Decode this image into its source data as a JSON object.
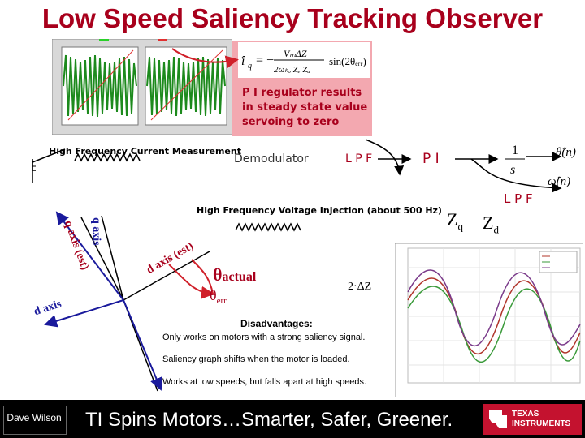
{
  "title": "Low Speed Saliency Tracking Observer",
  "equation": {
    "lhs": "î",
    "lhs_sub": "q",
    "num": "VₘΔZ",
    "den": "2ωₕₒ Zₑ Zₐ",
    "rhs": "sin(2θₑᵣᵣ)"
  },
  "pi_note": [
    "P I regulator results",
    "in steady state value",
    "servoing to zero"
  ],
  "hf_current_label": "High Frequency Current Measurement",
  "demodulator_label": "Demodulator",
  "lpf1_label": "L P F",
  "pi_label": "P I",
  "integrator": {
    "num": "1",
    "den": "s"
  },
  "theta_hat": "θ̂(n)",
  "omega_hat": "ω̂(n)",
  "lpf2_label": "L P F",
  "hf_voltage_label": "High Frequency Voltage Injection (about 500 Hz)",
  "zq_label": "Z",
  "zq_sub": "q",
  "zd_label": "Z",
  "zd_sub": "d",
  "q_axis": "q axis",
  "q_axis_est": "q axis (est)",
  "d_axis_est": "d axis (est)",
  "d_axis": "d axis",
  "theta_actual": "θ",
  "theta_actual_sub": "actual",
  "theta_err": "θ",
  "theta_err_sub": "err",
  "two_delta_z": "2·ΔZ",
  "disadvantages_title": "Disadvantages:",
  "disadvantages": [
    "Only works on motors with a strong saliency signal.",
    "Saliency graph shifts when the motor is loaded.",
    "Works at low speeds, but falls apart at high speeds."
  ],
  "footer_author": "Dave Wilson",
  "footer_slogan": "TI Spins Motors…Smarter, Safer, Greener.",
  "logo_text": "TEXAS INSTRUMENTS",
  "colors": {
    "title": "#a8001c",
    "pink": "#f3a8b0",
    "arrow": "#d0202a",
    "axis_blue": "#1a1a9c"
  },
  "icons": [
    "coil-icon",
    "coil-icon",
    "ti-logo-icon"
  ]
}
